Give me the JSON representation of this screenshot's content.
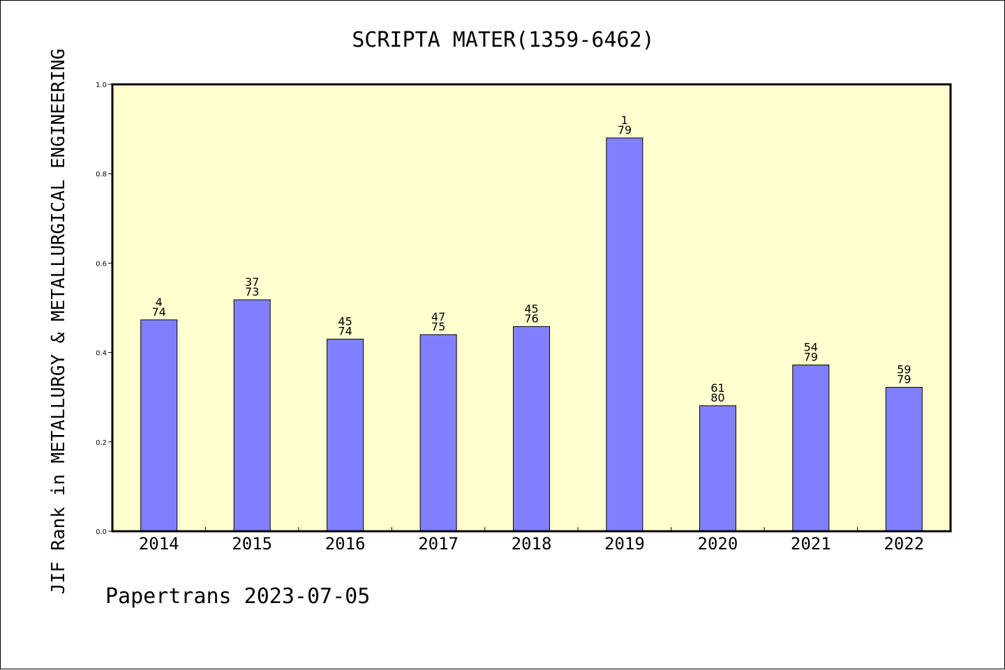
{
  "chart_data": {
    "type": "bar",
    "title": "SCRIPTA MATER(1359-6462)",
    "ylabel": "JIF Rank in METALLURGY & METALLURGICAL ENGINEERING",
    "xlabel": "",
    "categories": [
      "2014",
      "2015",
      "2016",
      "2017",
      "2018",
      "2019",
      "2020",
      "2021",
      "2022"
    ],
    "values": [
      0.473,
      0.518,
      0.43,
      0.44,
      0.458,
      0.88,
      0.281,
      0.372,
      0.322
    ],
    "labels_top": [
      "4",
      "37",
      "45",
      "47",
      "45",
      "1",
      "61",
      "54",
      "59"
    ],
    "labels_bottom": [
      "74",
      "73",
      "74",
      "75",
      "76",
      "79",
      "80",
      "79",
      "79"
    ],
    "ylim": [
      0,
      1.0
    ],
    "yticks": [
      "0.0",
      "0.2",
      "0.4",
      "0.6",
      "0.8",
      "1.0"
    ],
    "grid": false,
    "colors": {
      "bar_fill": "#8080ff",
      "plot_background": "#ffffd0",
      "axis": "#000000"
    }
  },
  "footer": "Papertrans 2023-07-05"
}
